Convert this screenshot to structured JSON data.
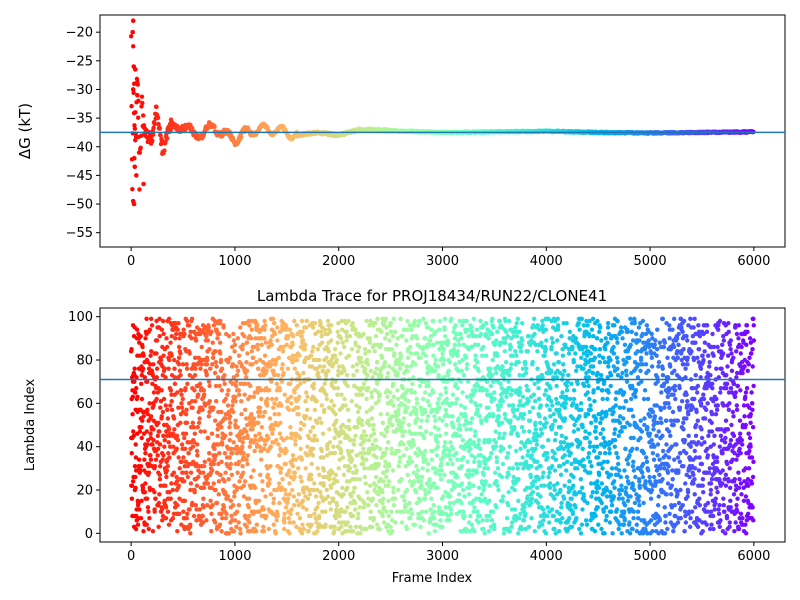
{
  "chart_data": [
    {
      "type": "scatter",
      "title": "",
      "xlabel": "",
      "ylabel": "ΔG (kT)",
      "xlim": [
        -300,
        6300
      ],
      "ylim": [
        -57.5,
        -17
      ],
      "xticks": [
        0,
        1000,
        2000,
        3000,
        4000,
        5000,
        6000
      ],
      "yticks": [
        -55,
        -50,
        -45,
        -40,
        -35,
        -30,
        -25,
        -20
      ],
      "reference_line": {
        "y": -37.5,
        "color": "#1f77b4"
      },
      "colormap": "rainbow (red at frame 0 → violet at frame 6000)",
      "n_points": 6000,
      "series": [
        {
          "trend_x": [
            0,
            10,
            20,
            40,
            60,
            80,
            100,
            150,
            200,
            250,
            300,
            400,
            500,
            600,
            700,
            800,
            900,
            1000,
            1200,
            1400,
            1600,
            1800,
            2000,
            2200,
            2500,
            3000,
            3500,
            4000,
            4500,
            5000,
            5500,
            6000
          ],
          "trend_y": [
            -20,
            -50,
            -26,
            -42,
            -30,
            -45,
            -33,
            -37,
            -40,
            -34,
            -39,
            -37,
            -36,
            -38,
            -37.5,
            -36.5,
            -38,
            -38.5,
            -37,
            -37,
            -38,
            -37.5,
            -38,
            -37,
            -37.2,
            -37.5,
            -37.4,
            -37.3,
            -37.5,
            -37.6,
            -37.5,
            -37.4
          ],
          "values": [
            {
              "x": 20,
              "y": -18
            },
            {
              "x": 15,
              "y": -20
            },
            {
              "x": 25,
              "y": -26
            },
            {
              "x": 40,
              "y": -26.5
            },
            {
              "x": 30,
              "y": -29
            },
            {
              "x": 20,
              "y": -30
            },
            {
              "x": 60,
              "y": -31
            },
            {
              "x": 70,
              "y": -32
            },
            {
              "x": 40,
              "y": -34
            },
            {
              "x": 30,
              "y": -42
            },
            {
              "x": 35,
              "y": -43.5
            },
            {
              "x": 50,
              "y": -45
            },
            {
              "x": 120,
              "y": -46.5
            },
            {
              "x": 20,
              "y": -49.5
            },
            {
              "x": 28,
              "y": -50
            }
          ]
        }
      ]
    },
    {
      "type": "scatter",
      "title": "Lambda Trace for PROJ18434/RUN22/CLONE41",
      "xlabel": "Frame Index",
      "ylabel": "Lambda Index",
      "xlim": [
        -300,
        6300
      ],
      "ylim": [
        -4,
        104
      ],
      "xticks": [
        0,
        1000,
        2000,
        3000,
        4000,
        5000,
        6000
      ],
      "yticks": [
        0,
        20,
        40,
        60,
        80,
        100
      ],
      "reference_line": {
        "y": 71,
        "color": "#1f77b4"
      },
      "colormap": "rainbow (red at frame 0 → violet at frame 6000)",
      "n_points": 6000,
      "series": [
        {
          "value_range": [
            0,
            99
          ],
          "distribution": "uniform random lambda index per frame"
        }
      ]
    }
  ]
}
